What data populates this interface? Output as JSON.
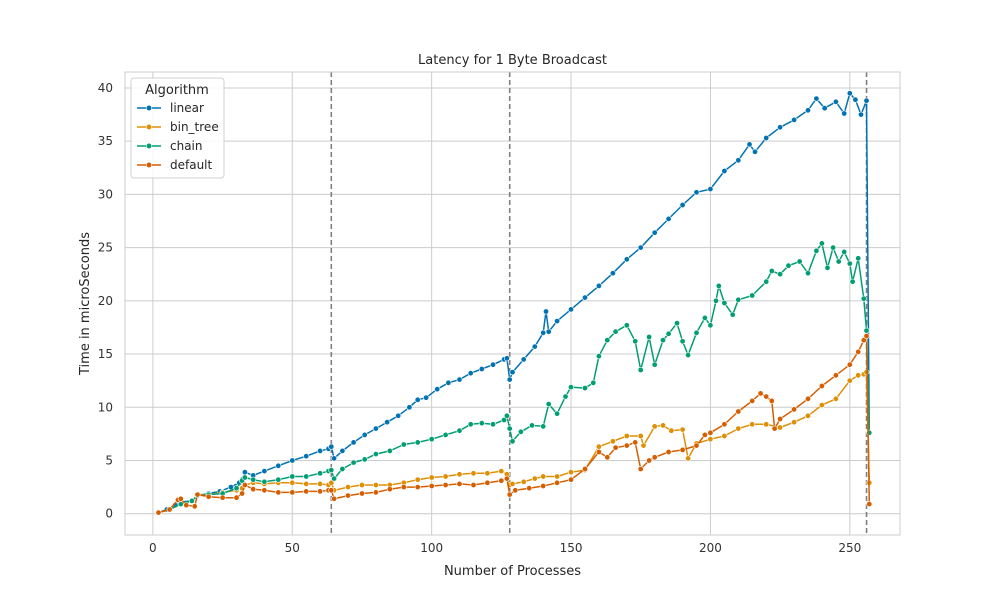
{
  "chart_data": {
    "type": "line",
    "title": "Latency for 1 Byte Broadcast",
    "xlabel": "Number of Processes",
    "ylabel": "Time in microSeconds",
    "xlim": [
      -10,
      268
    ],
    "ylim": [
      -2,
      41.5
    ],
    "xticks": [
      0,
      50,
      100,
      150,
      200,
      250
    ],
    "yticks": [
      0,
      5,
      10,
      15,
      20,
      25,
      30,
      35,
      40
    ],
    "grid": true,
    "vlines": [
      64,
      128,
      256
    ],
    "legend": {
      "title": "Algorithm",
      "placement": "top-left"
    },
    "series": [
      {
        "name": "linear",
        "color": "#0173b2",
        "points": [
          [
            2,
            0.1
          ],
          [
            5,
            0.4
          ],
          [
            8,
            0.8
          ],
          [
            10,
            1.1
          ],
          [
            14,
            1.2
          ],
          [
            16,
            1.7
          ],
          [
            20,
            1.9
          ],
          [
            24,
            2.1
          ],
          [
            28,
            2.5
          ],
          [
            31,
            2.9
          ],
          [
            32,
            3.2
          ],
          [
            33,
            3.9
          ],
          [
            36,
            3.6
          ],
          [
            40,
            4.0
          ],
          [
            45,
            4.5
          ],
          [
            50,
            5.0
          ],
          [
            55,
            5.4
          ],
          [
            60,
            5.9
          ],
          [
            63,
            6.1
          ],
          [
            64,
            6.3
          ],
          [
            65,
            5.2
          ],
          [
            68,
            5.9
          ],
          [
            72,
            6.7
          ],
          [
            76,
            7.4
          ],
          [
            80,
            8.0
          ],
          [
            84,
            8.6
          ],
          [
            88,
            9.2
          ],
          [
            92,
            10.0
          ],
          [
            95,
            10.7
          ],
          [
            98,
            10.9
          ],
          [
            102,
            11.7
          ],
          [
            106,
            12.3
          ],
          [
            110,
            12.6
          ],
          [
            114,
            13.2
          ],
          [
            118,
            13.6
          ],
          [
            122,
            14.0
          ],
          [
            126,
            14.5
          ],
          [
            127,
            14.6
          ],
          [
            128,
            12.6
          ],
          [
            129,
            13.3
          ],
          [
            133,
            14.5
          ],
          [
            137,
            15.7
          ],
          [
            140,
            17.0
          ],
          [
            141,
            19.0
          ],
          [
            142,
            17.1
          ],
          [
            145,
            18.1
          ],
          [
            150,
            19.2
          ],
          [
            155,
            20.3
          ],
          [
            160,
            21.4
          ],
          [
            165,
            22.6
          ],
          [
            170,
            23.9
          ],
          [
            175,
            25.0
          ],
          [
            180,
            26.4
          ],
          [
            185,
            27.7
          ],
          [
            190,
            29.0
          ],
          [
            195,
            30.2
          ],
          [
            200,
            30.5
          ],
          [
            205,
            32.2
          ],
          [
            210,
            33.2
          ],
          [
            214,
            34.7
          ],
          [
            216,
            34.0
          ],
          [
            220,
            35.3
          ],
          [
            225,
            36.3
          ],
          [
            230,
            37.0
          ],
          [
            235,
            37.9
          ],
          [
            238,
            39.0
          ],
          [
            241,
            38.1
          ],
          [
            245,
            38.7
          ],
          [
            248,
            37.6
          ],
          [
            250,
            39.5
          ],
          [
            252,
            38.9
          ],
          [
            254,
            37.5
          ],
          [
            256,
            38.8
          ],
          [
            257,
            7.6
          ]
        ]
      },
      {
        "name": "bin_tree",
        "color": "#de8f05",
        "points": [
          [
            2,
            0.1
          ],
          [
            6,
            0.4
          ],
          [
            10,
            0.9
          ],
          [
            14,
            1.2
          ],
          [
            16,
            1.8
          ],
          [
            20,
            1.8
          ],
          [
            25,
            2.0
          ],
          [
            30,
            2.2
          ],
          [
            32,
            2.4
          ],
          [
            33,
            2.7
          ],
          [
            36,
            2.9
          ],
          [
            40,
            2.8
          ],
          [
            45,
            2.9
          ],
          [
            50,
            2.9
          ],
          [
            55,
            2.8
          ],
          [
            60,
            2.8
          ],
          [
            63,
            2.7
          ],
          [
            64,
            2.9
          ],
          [
            65,
            2.2
          ],
          [
            70,
            2.5
          ],
          [
            75,
            2.7
          ],
          [
            80,
            2.7
          ],
          [
            85,
            2.7
          ],
          [
            90,
            2.9
          ],
          [
            95,
            3.2
          ],
          [
            100,
            3.4
          ],
          [
            105,
            3.5
          ],
          [
            110,
            3.7
          ],
          [
            115,
            3.8
          ],
          [
            120,
            3.8
          ],
          [
            125,
            4.0
          ],
          [
            127,
            3.7
          ],
          [
            128,
            2.7
          ],
          [
            129,
            2.8
          ],
          [
            133,
            3.0
          ],
          [
            137,
            3.3
          ],
          [
            140,
            3.5
          ],
          [
            145,
            3.5
          ],
          [
            150,
            3.9
          ],
          [
            155,
            4.1
          ],
          [
            160,
            6.3
          ],
          [
            165,
            6.8
          ],
          [
            170,
            7.3
          ],
          [
            175,
            7.3
          ],
          [
            176,
            6.4
          ],
          [
            180,
            8.2
          ],
          [
            183,
            8.3
          ],
          [
            186,
            7.8
          ],
          [
            190,
            7.9
          ],
          [
            192,
            5.2
          ],
          [
            195,
            6.6
          ],
          [
            200,
            7.0
          ],
          [
            205,
            7.3
          ],
          [
            210,
            8.0
          ],
          [
            215,
            8.4
          ],
          [
            220,
            8.4
          ],
          [
            225,
            8.1
          ],
          [
            230,
            8.6
          ],
          [
            235,
            9.2
          ],
          [
            240,
            10.2
          ],
          [
            245,
            10.8
          ],
          [
            250,
            12.5
          ],
          [
            253,
            13.0
          ],
          [
            255,
            13.1
          ],
          [
            256,
            13.3
          ],
          [
            257,
            2.9
          ]
        ]
      },
      {
        "name": "chain",
        "color": "#029e73",
        "points": [
          [
            2,
            0.1
          ],
          [
            6,
            0.4
          ],
          [
            10,
            0.9
          ],
          [
            14,
            1.2
          ],
          [
            16,
            1.7
          ],
          [
            20,
            1.8
          ],
          [
            25,
            1.9
          ],
          [
            30,
            2.4
          ],
          [
            32,
            3.1
          ],
          [
            33,
            3.4
          ],
          [
            36,
            3.2
          ],
          [
            40,
            3.0
          ],
          [
            45,
            3.2
          ],
          [
            50,
            3.5
          ],
          [
            55,
            3.5
          ],
          [
            60,
            3.8
          ],
          [
            63,
            4.0
          ],
          [
            64,
            4.1
          ],
          [
            65,
            3.3
          ],
          [
            68,
            4.2
          ],
          [
            72,
            4.8
          ],
          [
            76,
            5.1
          ],
          [
            80,
            5.6
          ],
          [
            85,
            5.9
          ],
          [
            90,
            6.5
          ],
          [
            95,
            6.7
          ],
          [
            100,
            7.0
          ],
          [
            105,
            7.4
          ],
          [
            110,
            7.8
          ],
          [
            114,
            8.4
          ],
          [
            118,
            8.5
          ],
          [
            122,
            8.4
          ],
          [
            126,
            8.8
          ],
          [
            127,
            9.2
          ],
          [
            128,
            8.0
          ],
          [
            129,
            6.8
          ],
          [
            132,
            7.7
          ],
          [
            136,
            8.3
          ],
          [
            140,
            8.2
          ],
          [
            142,
            10.3
          ],
          [
            145,
            9.4
          ],
          [
            148,
            11.0
          ],
          [
            150,
            11.9
          ],
          [
            155,
            11.8
          ],
          [
            158,
            12.3
          ],
          [
            160,
            14.8
          ],
          [
            163,
            16.3
          ],
          [
            166,
            17.1
          ],
          [
            170,
            17.7
          ],
          [
            173,
            16.2
          ],
          [
            175,
            13.5
          ],
          [
            178,
            16.6
          ],
          [
            180,
            14.0
          ],
          [
            183,
            16.3
          ],
          [
            185,
            16.9
          ],
          [
            188,
            17.9
          ],
          [
            190,
            16.2
          ],
          [
            192,
            14.9
          ],
          [
            195,
            17.0
          ],
          [
            198,
            18.4
          ],
          [
            200,
            17.7
          ],
          [
            202,
            20.0
          ],
          [
            203,
            21.4
          ],
          [
            205,
            19.8
          ],
          [
            208,
            18.7
          ],
          [
            210,
            20.1
          ],
          [
            215,
            20.5
          ],
          [
            220,
            21.8
          ],
          [
            222,
            22.8
          ],
          [
            225,
            22.5
          ],
          [
            228,
            23.3
          ],
          [
            232,
            23.7
          ],
          [
            235,
            22.6
          ],
          [
            238,
            24.7
          ],
          [
            240,
            25.4
          ],
          [
            242,
            23.1
          ],
          [
            244,
            25.0
          ],
          [
            246,
            23.7
          ],
          [
            248,
            24.6
          ],
          [
            250,
            23.5
          ],
          [
            251,
            21.8
          ],
          [
            253,
            24.0
          ],
          [
            255,
            20.2
          ],
          [
            256,
            17.2
          ],
          [
            257,
            7.6
          ]
        ]
      },
      {
        "name": "default",
        "color": "#d55e00",
        "points": [
          [
            2,
            0.1
          ],
          [
            6,
            0.4
          ],
          [
            9,
            1.3
          ],
          [
            10,
            1.4
          ],
          [
            12,
            0.8
          ],
          [
            15,
            0.7
          ],
          [
            16,
            1.8
          ],
          [
            20,
            1.6
          ],
          [
            25,
            1.5
          ],
          [
            30,
            1.5
          ],
          [
            32,
            1.9
          ],
          [
            33,
            2.7
          ],
          [
            36,
            2.3
          ],
          [
            40,
            2.2
          ],
          [
            45,
            2.0
          ],
          [
            50,
            2.0
          ],
          [
            55,
            2.1
          ],
          [
            60,
            2.1
          ],
          [
            63,
            2.2
          ],
          [
            64,
            2.2
          ],
          [
            65,
            1.4
          ],
          [
            70,
            1.7
          ],
          [
            75,
            1.9
          ],
          [
            80,
            2.0
          ],
          [
            85,
            2.3
          ],
          [
            90,
            2.5
          ],
          [
            95,
            2.5
          ],
          [
            100,
            2.6
          ],
          [
            105,
            2.7
          ],
          [
            110,
            2.8
          ],
          [
            115,
            2.7
          ],
          [
            120,
            2.9
          ],
          [
            125,
            3.1
          ],
          [
            127,
            3.3
          ],
          [
            128,
            1.8
          ],
          [
            130,
            2.2
          ],
          [
            135,
            2.4
          ],
          [
            140,
            2.6
          ],
          [
            145,
            2.9
          ],
          [
            150,
            3.2
          ],
          [
            155,
            4.2
          ],
          [
            160,
            5.8
          ],
          [
            163,
            5.3
          ],
          [
            166,
            6.2
          ],
          [
            170,
            6.4
          ],
          [
            173,
            6.7
          ],
          [
            175,
            4.2
          ],
          [
            178,
            5.0
          ],
          [
            180,
            5.3
          ],
          [
            185,
            5.8
          ],
          [
            190,
            6.0
          ],
          [
            195,
            6.4
          ],
          [
            198,
            7.4
          ],
          [
            200,
            7.6
          ],
          [
            205,
            8.4
          ],
          [
            210,
            9.6
          ],
          [
            215,
            10.6
          ],
          [
            218,
            11.3
          ],
          [
            220,
            11.0
          ],
          [
            222,
            10.6
          ],
          [
            223,
            8.0
          ],
          [
            225,
            8.9
          ],
          [
            230,
            9.8
          ],
          [
            235,
            10.8
          ],
          [
            240,
            12.0
          ],
          [
            245,
            13.0
          ],
          [
            250,
            14.0
          ],
          [
            253,
            15.2
          ],
          [
            255,
            16.3
          ],
          [
            256,
            16.7
          ],
          [
            257,
            0.9
          ]
        ]
      }
    ]
  }
}
